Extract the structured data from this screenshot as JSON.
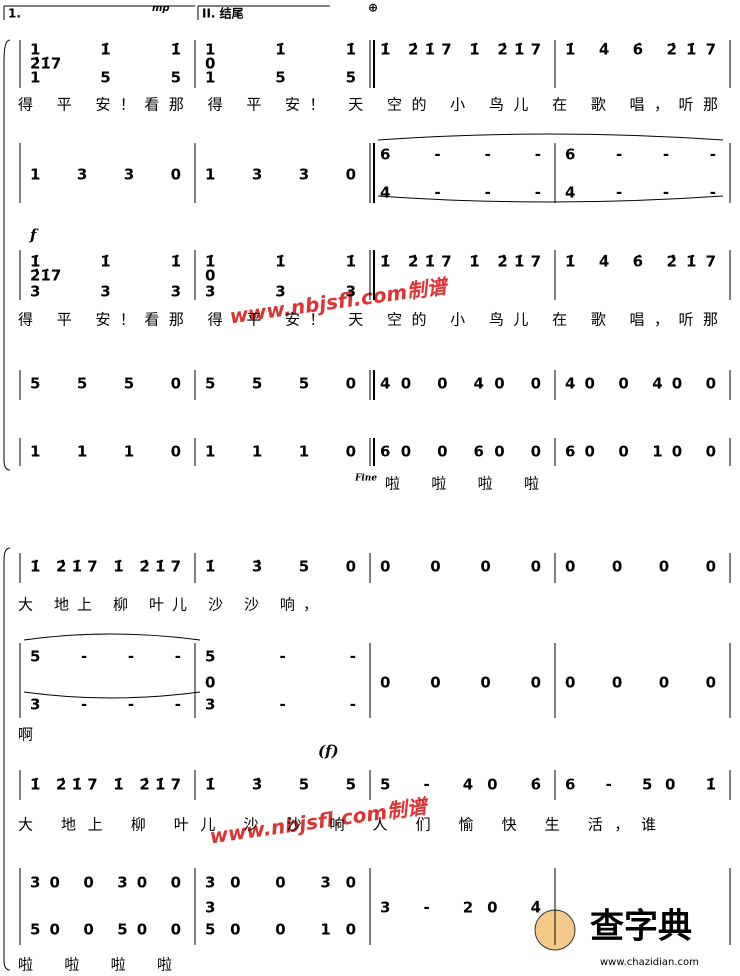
{
  "volta1": "1.",
  "volta2": "II. 结尾",
  "mark_mp": "mp",
  "mark_f": "f",
  "mark_f2": "(f)",
  "fine": "Fine",
  "watermark": "www.nbjsfl.com制谱",
  "logo": "查字典",
  "logo_url": "www.chazidian.com",
  "systems": [
    {
      "rows": [
        {
          "measures": [
            "1 1̇ 1̇",
            "1 1̇ 1̇",
            "1̇ 2̇1̇7 1̇ 2̇1̇7",
            "1̇ 4̇ 6̇ 2̇1̇7"
          ]
        },
        {
          "measures": [
            "2̇1̇7",
            "0",
            null,
            null
          ]
        },
        {
          "measures": [
            "1 5 5",
            "1 5 5",
            null,
            null
          ]
        },
        {
          "lyrics": "得 平 安！看那 得 平 安！ 天 空的 小 鸟儿 在 歌 唱，听那"
        },
        {
          "measures": [
            null,
            null,
            "6 - - -",
            "6 - - -"
          ]
        },
        {
          "measures": [
            "1 3 3 0",
            "1 3 3 0",
            null,
            null
          ]
        },
        {
          "measures": [
            null,
            null,
            "4 - - -",
            "4 - - -"
          ]
        },
        {
          "measures": [
            "1̇ 1̇ 1̇",
            "1̇ 1̇ 1̇",
            "1̇ 2̇1̇7 1̇ 2̇1̇7",
            "1̇ 4̇ 6̇ 2̇1̇7"
          ]
        },
        {
          "measures": [
            "2̇1̇7",
            "0",
            null,
            null
          ]
        },
        {
          "measures": [
            "3 3 3",
            "3 3 3",
            null,
            null
          ]
        },
        {
          "lyrics": "得 平 安！看那 得 平 安！ 天 空的 小 鸟儿 在 歌 唱，听那"
        },
        {
          "measures": [
            "5 5 5 0",
            "5 5 5 0",
            "40 0 40 0",
            "40 0 40 0"
          ]
        },
        {
          "measures": [
            "1 1 1 0",
            "1 1 1 0",
            "60 0 60 0",
            "60 0 10 0"
          ]
        },
        {
          "lyrics": "啦 啦 啦 啦"
        }
      ]
    },
    {
      "rows": [
        {
          "measures": [
            "1̇ 2̇1̇7 1̇ 2̇1̇7",
            "1̇ 3̇ 5 0",
            "0 0 0 0",
            "0 0 0 0"
          ]
        },
        {
          "lyrics": "大 地上 柳 叶儿 沙 沙 响，"
        },
        {
          "measures": [
            "5 - - -",
            "5 - -",
            null,
            null
          ]
        },
        {
          "measures": [
            null,
            "0",
            "0 0 0 0",
            "0 0 0 0"
          ]
        },
        {
          "measures": [
            "3 - - -",
            "3 - -",
            null,
            null
          ]
        },
        {
          "lyrics": "啊"
        },
        {
          "measures": [
            "1̇ 2̇1̇7 1̇ 2̇1̇7",
            "1̇ 3̇ 5 5",
            "5 - 40 6̇",
            "6 - 50 1̇"
          ]
        },
        {
          "lyrics": "大 地上 柳 叶儿 沙 沙 响 人 们 愉 快 生 活，谁"
        },
        {
          "measures": [
            "30 0 30 0",
            "30 0 30",
            null,
            null
          ]
        },
        {
          "measures": [
            null,
            "3",
            "3 - 20 4̇",
            null
          ]
        },
        {
          "measures": [
            "50 0 50 0",
            "50 0 10",
            null,
            null
          ]
        },
        {
          "lyrics": "啦 啦 啦 啦"
        }
      ]
    }
  ]
}
